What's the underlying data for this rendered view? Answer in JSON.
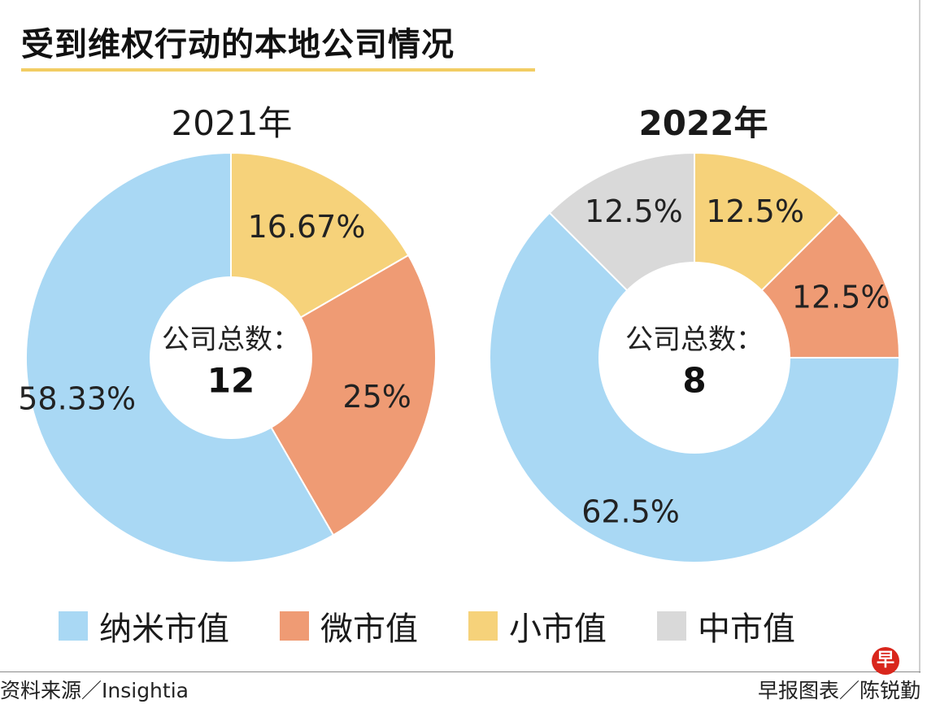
{
  "title": "受到维权行动的本地公司情况",
  "legend": [
    {
      "label": "纳米市值",
      "color": "#a9d8f4"
    },
    {
      "label": "微市值",
      "color": "#ef9b74"
    },
    {
      "label": "小市值",
      "color": "#f6d27a"
    },
    {
      "label": "中市值",
      "color": "#d9d9d9"
    }
  ],
  "chart_data": [
    {
      "type": "pie",
      "title": "2021年",
      "center_label": "公司总数：",
      "center_value": "12",
      "slices": [
        {
          "category": "小市值",
          "value": 16.67,
          "label": "16.67%"
        },
        {
          "category": "微市值",
          "value": 25,
          "label": "25%"
        },
        {
          "category": "纳米市值",
          "value": 58.33,
          "label": "58.33%"
        }
      ]
    },
    {
      "type": "pie",
      "title": "2022年",
      "center_label": "公司总数：",
      "center_value": "8",
      "slices": [
        {
          "category": "小市值",
          "value": 12.5,
          "label": "12.5%"
        },
        {
          "category": "微市值",
          "value": 12.5,
          "label": "12.5%"
        },
        {
          "category": "纳米市值",
          "value": 62.5,
          "label": "62.5%"
        },
        {
          "category": "中市值",
          "value": 12.5,
          "label": "12.5%"
        }
      ]
    }
  ],
  "footer": {
    "source": "资料来源／Insightia",
    "credit": "早报图表／陈锐勤",
    "logo_char": "早"
  }
}
